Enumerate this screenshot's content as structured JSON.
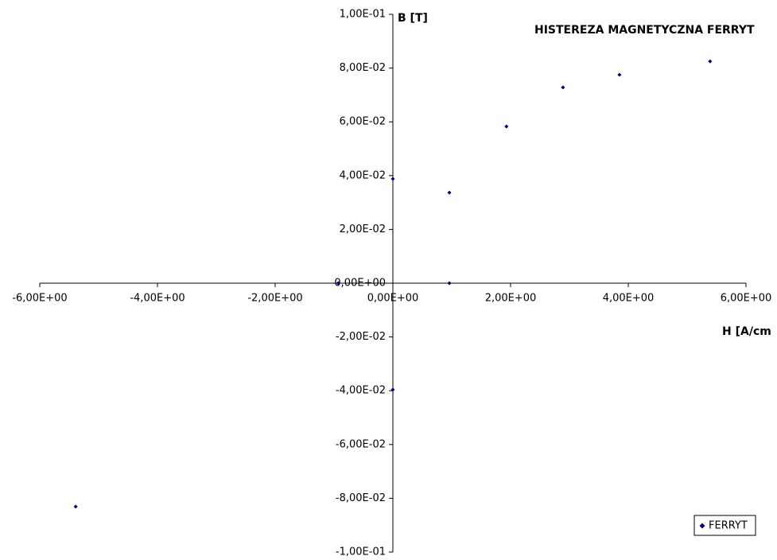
{
  "chart_data": {
    "type": "scatter",
    "title": "HISTEREZA MAGNETYCZNA FERRYT",
    "x_label": "H [A/cm",
    "y_label": "B [T]",
    "x": [
      0,
      0.96,
      1.93,
      2.89,
      3.85,
      5.39,
      0.96,
      -0.93,
      0,
      -5.39
    ],
    "series": [
      {
        "name": "FERRYT",
        "color": "#000080",
        "values": [
          0.0388,
          0.0337,
          0.0583,
          0.0728,
          0.0775,
          0.0825,
          0,
          0,
          -0.0396,
          -0.0831
        ]
      }
    ],
    "xlim": [
      -6,
      6
    ],
    "ylim": [
      -0.1,
      0.1
    ],
    "xticks": [
      {
        "value": -6,
        "label": "-6,00E+00"
      },
      {
        "value": -4,
        "label": "-4,00E+00"
      },
      {
        "value": -2,
        "label": "-2,00E+00"
      },
      {
        "value": 0,
        "label": "0,00E+00"
      },
      {
        "value": 2,
        "label": "2,00E+00"
      },
      {
        "value": 4,
        "label": "4,00E+00"
      },
      {
        "value": 6,
        "label": "6,00E+00"
      }
    ],
    "yticks": [
      {
        "value": -0.1,
        "label": "-1,00E-01"
      },
      {
        "value": -0.08,
        "label": "-8,00E-02"
      },
      {
        "value": -0.06,
        "label": "-6,00E-02"
      },
      {
        "value": -0.04,
        "label": "-4,00E-02"
      },
      {
        "value": -0.02,
        "label": "-2,00E-02"
      },
      {
        "value": 0,
        "label": "0,00E+00"
      },
      {
        "value": 0.02,
        "label": "2,00E-02"
      },
      {
        "value": 0.04,
        "label": "4,00E-02"
      },
      {
        "value": 0.06,
        "label": "6,00E-02"
      },
      {
        "value": 0.08,
        "label": "8,00E-02"
      },
      {
        "value": 0.1,
        "label": "1,00E-01"
      }
    ],
    "grid": false,
    "legend": "bottom-right"
  }
}
